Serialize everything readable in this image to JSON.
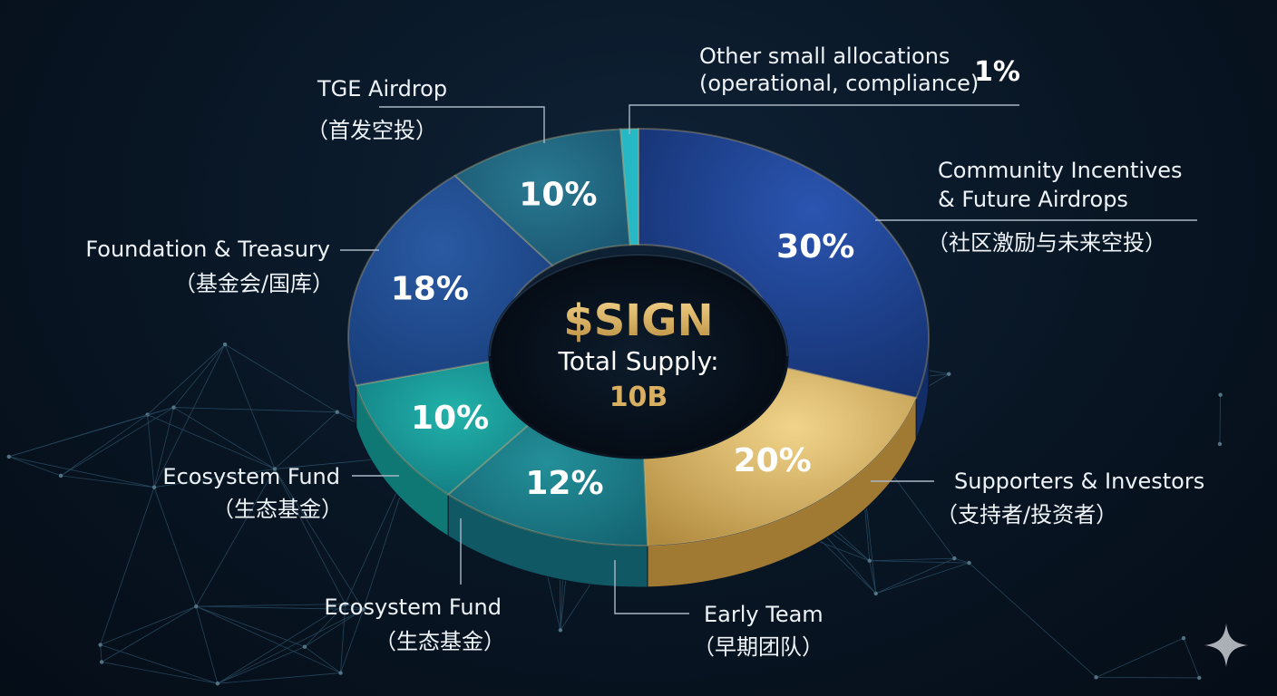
{
  "chart_data": {
    "type": "pie",
    "title": "$SIGN",
    "subtitle": "Total Supply:",
    "total": "10B",
    "slices": [
      {
        "label": "Community Incentives & Future Airdrops",
        "label_lines": [
          "Community Incentives",
          "& Future Airdrops",
          "（社区激励与未来空投）"
        ],
        "value": 30,
        "display": "30%",
        "color": "#1c3f8f"
      },
      {
        "label": "Supporters & Investors",
        "label_lines": [
          "Supporters & Investors",
          "（支持者/投资者）"
        ],
        "value": 20,
        "display": "20%",
        "color": "#c9a24e"
      },
      {
        "label": "Early Team",
        "label_lines": [
          "Early Team",
          "（早期团队）"
        ],
        "value": 12,
        "display": "12%",
        "color": "#1b7f86"
      },
      {
        "label": "Ecosystem Fund",
        "label_lines": [
          "Ecosystem Fund",
          "（生态基金）"
        ],
        "value": 10,
        "display": "10%",
        "color": "#189a96"
      },
      {
        "label": "Ecosystem Fund",
        "label_lines": [
          "Ecosystem  Fund",
          "（生态基金）"
        ],
        "value": 0,
        "display": "",
        "color": "#189a96"
      },
      {
        "label": "Foundation & Treasury",
        "label_lines": [
          "Foundation & Treasury",
          "（基金会/国库）"
        ],
        "value": 18,
        "display": "18%",
        "color": "#1d4586"
      },
      {
        "label": "TGE Airdrop",
        "label_lines": [
          "TGE Airdrop",
          "（首发空投）"
        ],
        "value": 10,
        "display": "10%",
        "color": "#1f5f7a"
      },
      {
        "label": "Other small allocations (operational, compliance)",
        "label_lines": [
          "Other small allocations",
          "(operational, compliance)"
        ],
        "value": 1,
        "display": "1%",
        "color": "#26b8c4"
      }
    ],
    "legend": "none"
  },
  "icons": {
    "corner": "sparkle-icon"
  },
  "colors": {
    "gold": "#d9b062",
    "background": "#081523"
  }
}
